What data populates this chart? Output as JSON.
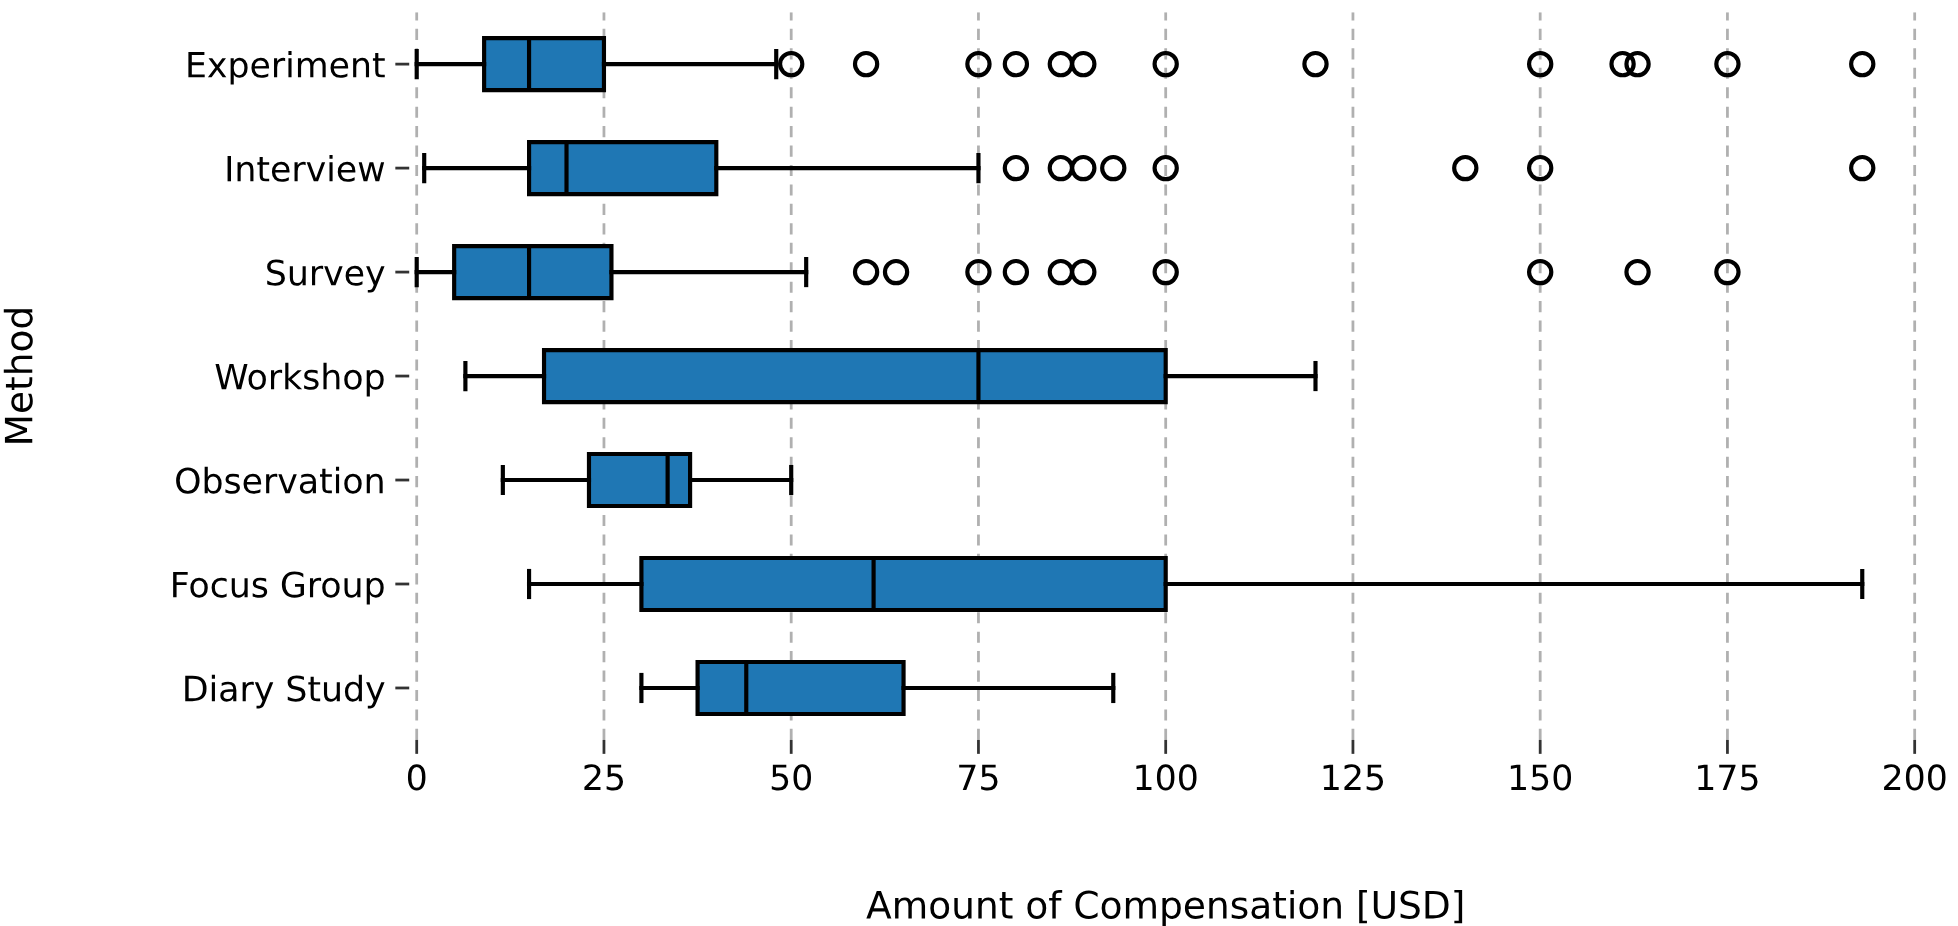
{
  "chart_data": {
    "type": "box",
    "orientation": "horizontal",
    "xlabel": "Amount of Compensation [USD]",
    "ylabel": "Method",
    "categories": [
      "Experiment",
      "Interview",
      "Survey",
      "Workshop",
      "Observation",
      "Focus Group",
      "Diary Study"
    ],
    "boxes": [
      {
        "low": 0,
        "q1": 9,
        "median": 15,
        "q3": 25,
        "high": 48,
        "outliers": [
          50,
          60,
          75,
          80,
          86,
          89,
          100,
          120,
          150,
          161,
          163,
          175,
          193
        ]
      },
      {
        "low": 1,
        "q1": 15,
        "median": 20,
        "q3": 40,
        "high": 75,
        "outliers": [
          80,
          86,
          89,
          93,
          100,
          140,
          150,
          193
        ]
      },
      {
        "low": 0,
        "q1": 5,
        "median": 15,
        "q3": 26,
        "high": 52,
        "outliers": [
          60,
          64,
          75,
          80,
          86,
          89,
          100,
          150,
          163,
          175
        ]
      },
      {
        "low": 6.5,
        "q1": 17,
        "median": 75,
        "q3": 100,
        "high": 120
      },
      {
        "low": 11.5,
        "q1": 23,
        "median": 33.5,
        "q3": 36.5,
        "high": 50
      },
      {
        "low": 15,
        "q1": 30,
        "median": 61,
        "q3": 100,
        "high": 193
      },
      {
        "low": 30,
        "q1": 37.5,
        "median": 44,
        "q3": 65,
        "high": 93
      }
    ],
    "color": "#1f77b4",
    "marker": "circle",
    "xlim": [
      -1,
      201
    ],
    "xticks": [
      0,
      25,
      50,
      75,
      100,
      125,
      150,
      175,
      200
    ],
    "grid": "x"
  }
}
